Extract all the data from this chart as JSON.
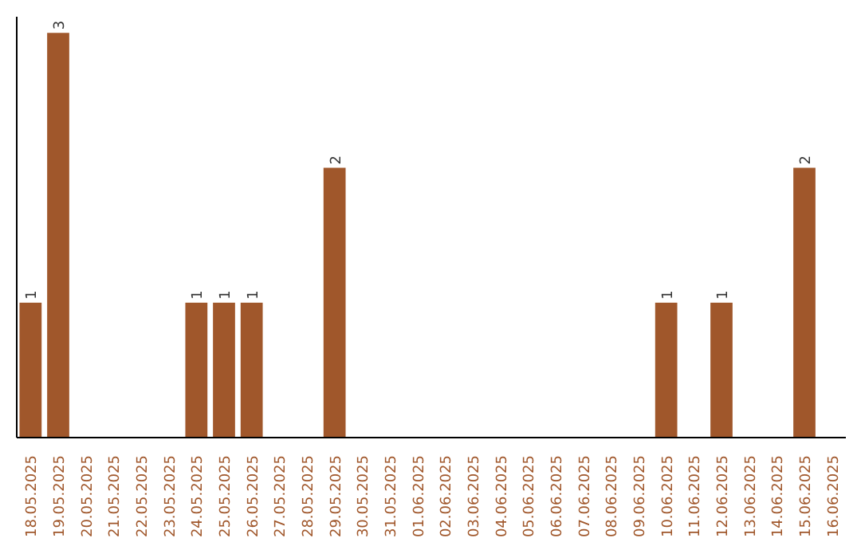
{
  "chart_data": {
    "type": "bar",
    "categories": [
      "18.05.2025",
      "19.05.2025",
      "20.05.2025",
      "21.05.2025",
      "22.05.2025",
      "23.05.2025",
      "24.05.2025",
      "25.05.2025",
      "26.05.2025",
      "27.05.2025",
      "28.05.2025",
      "29.05.2025",
      "30.05.2025",
      "31.05.2025",
      "01.06.2025",
      "02.06.2025",
      "03.06.2025",
      "04.06.2025",
      "05.06.2025",
      "06.06.2025",
      "07.06.2025",
      "08.06.2025",
      "09.06.2025",
      "10.06.2025",
      "11.06.2025",
      "12.06.2025",
      "13.06.2025",
      "14.06.2025",
      "15.06.2025",
      "16.06.2025"
    ],
    "values": [
      1,
      3,
      0,
      0,
      0,
      0,
      1,
      1,
      1,
      0,
      0,
      2,
      0,
      0,
      0,
      0,
      0,
      0,
      0,
      0,
      0,
      0,
      0,
      1,
      0,
      1,
      0,
      0,
      2,
      0
    ],
    "value_labels": [
      "1",
      "3",
      null,
      null,
      null,
      null,
      "1",
      "1",
      "1",
      null,
      null,
      "2",
      null,
      null,
      null,
      null,
      null,
      null,
      null,
      null,
      null,
      null,
      null,
      "1",
      null,
      "1",
      null,
      null,
      "2",
      null
    ],
    "color": "#a0572b"
  }
}
